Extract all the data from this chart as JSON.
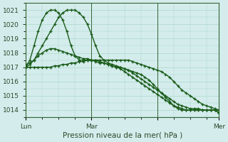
{
  "xlabel": "Pression niveau de la mer( hPa )",
  "bg_color": "#d4ecec",
  "grid_color": "#a8d8c8",
  "line_color": "#1a5c1a",
  "ylim": [
    1013.5,
    1021.5
  ],
  "xlim": [
    0,
    47
  ],
  "xticks": [
    0,
    16,
    32,
    47
  ],
  "xtick_labels": [
    "Lun",
    "Mar",
    "",
    "Mer"
  ],
  "yticks": [
    1014,
    1015,
    1016,
    1017,
    1018,
    1019,
    1020,
    1021
  ],
  "series": [
    [
      1017.0,
      1017.5,
      1018.5,
      1019.5,
      1020.3,
      1020.8,
      1021.0,
      1021.0,
      1020.8,
      1020.3,
      1019.5,
      1018.5,
      1017.8,
      1017.5,
      1017.5,
      1017.5,
      1017.5,
      1017.4,
      1017.3,
      1017.3,
      1017.2,
      1017.1,
      1017.0,
      1017.0,
      1016.9,
      1016.8,
      1016.7,
      1016.6,
      1016.5,
      1016.3,
      1016.1,
      1015.8,
      1015.5,
      1015.2,
      1014.9,
      1014.6,
      1014.3,
      1014.1,
      1014.0,
      1014.0,
      1014.0,
      1014.0,
      1014.0,
      1014.0,
      1014.0,
      1014.0,
      1014.0,
      1014.0
    ],
    [
      1017.2,
      1017.3,
      1017.5,
      1017.8,
      1018.0,
      1018.2,
      1018.3,
      1018.3,
      1018.2,
      1018.1,
      1018.0,
      1017.9,
      1017.8,
      1017.7,
      1017.6,
      1017.6,
      1017.5,
      1017.5,
      1017.5,
      1017.5,
      1017.5,
      1017.5,
      1017.5,
      1017.5,
      1017.5,
      1017.5,
      1017.4,
      1017.3,
      1017.2,
      1017.1,
      1017.0,
      1016.9,
      1016.8,
      1016.7,
      1016.5,
      1016.3,
      1016.0,
      1015.7,
      1015.4,
      1015.2,
      1015.0,
      1014.8,
      1014.6,
      1014.4,
      1014.3,
      1014.2,
      1014.1,
      1014.0
    ],
    [
      1017.0,
      1017.2,
      1017.5,
      1018.0,
      1018.5,
      1019.0,
      1019.5,
      1020.0,
      1020.5,
      1020.8,
      1021.0,
      1021.0,
      1021.0,
      1020.8,
      1020.5,
      1020.0,
      1019.3,
      1018.5,
      1017.8,
      1017.5,
      1017.3,
      1017.2,
      1017.1,
      1017.0,
      1016.9,
      1016.8,
      1016.6,
      1016.4,
      1016.2,
      1016.0,
      1015.8,
      1015.6,
      1015.4,
      1015.2,
      1015.0,
      1014.8,
      1014.6,
      1014.4,
      1014.3,
      1014.2,
      1014.1,
      1014.1,
      1014.1,
      1014.0,
      1014.0,
      1014.0,
      1014.0,
      1013.8
    ],
    [
      1017.0,
      1017.0,
      1017.0,
      1017.0,
      1017.0,
      1017.0,
      1017.0,
      1017.1,
      1017.1,
      1017.2,
      1017.2,
      1017.3,
      1017.3,
      1017.4,
      1017.4,
      1017.5,
      1017.5,
      1017.5,
      1017.4,
      1017.3,
      1017.2,
      1017.1,
      1017.0,
      1016.9,
      1016.7,
      1016.5,
      1016.3,
      1016.1,
      1015.9,
      1015.7,
      1015.5,
      1015.3,
      1015.1,
      1014.9,
      1014.7,
      1014.5,
      1014.3,
      1014.2,
      1014.1,
      1014.0,
      1014.0,
      1014.0,
      1014.0,
      1014.0,
      1014.0,
      1014.0,
      1014.0,
      1013.8
    ]
  ],
  "vline_x": [
    16,
    32
  ],
  "marker": "+",
  "markersize": 3.5,
  "linewidth": 1.0,
  "tick_fontsize": 6.5,
  "xlabel_fontsize": 7.5
}
